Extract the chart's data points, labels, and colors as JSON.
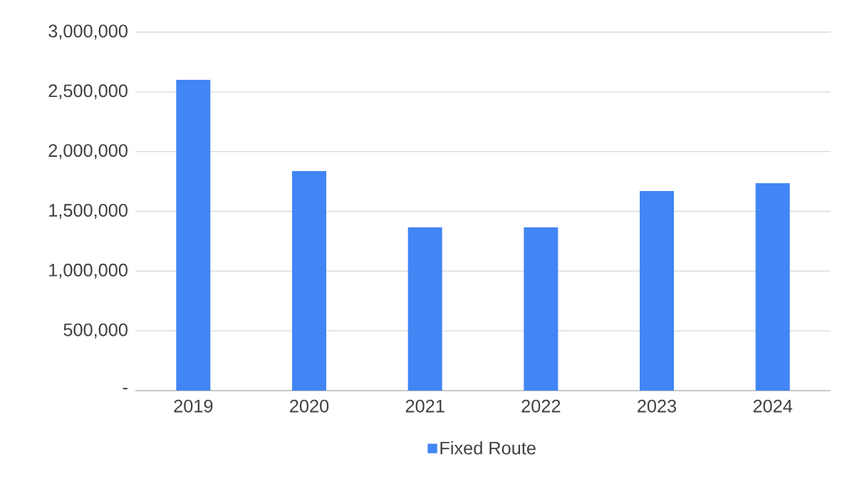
{
  "chart_data": {
    "type": "bar",
    "categories": [
      "2019",
      "2020",
      "2021",
      "2022",
      "2023",
      "2024"
    ],
    "series": [
      {
        "name": "Fixed Route",
        "color": "#4285f4",
        "values": [
          2600000,
          1837000,
          1366000,
          1366000,
          1670000,
          1736000
        ]
      }
    ],
    "ylim": [
      0,
      3000000
    ],
    "yticks": [
      {
        "value": 0,
        "label": "-"
      },
      {
        "value": 500000,
        "label": "500,000"
      },
      {
        "value": 1000000,
        "label": "1,000,000"
      },
      {
        "value": 1500000,
        "label": "1,500,000"
      },
      {
        "value": 2000000,
        "label": "2,000,000"
      },
      {
        "value": 2500000,
        "label": "2,500,000"
      },
      {
        "value": 3000000,
        "label": "3,000,000"
      }
    ],
    "grid": "y",
    "legend": "bottom"
  }
}
